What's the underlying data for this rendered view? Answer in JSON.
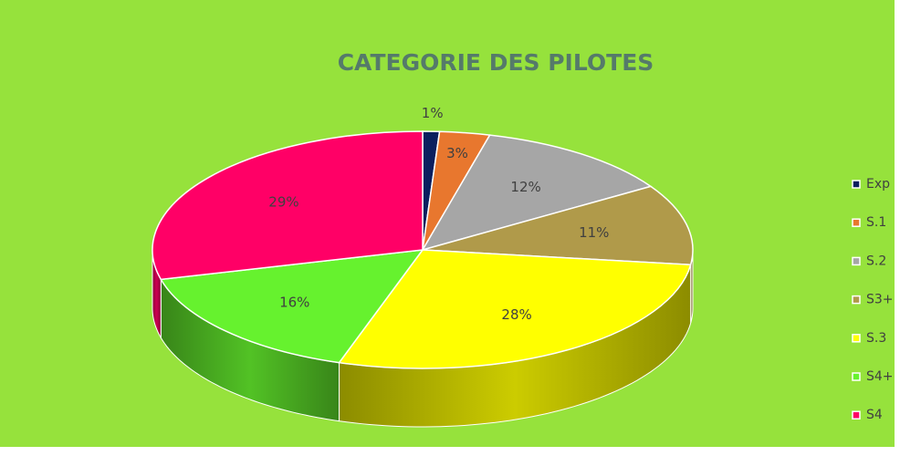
{
  "chart_data": {
    "type": "pie",
    "title": "CATEGORIE DES PILOTES",
    "categories": [
      "Exp",
      "S.1",
      "S.2",
      "S3+",
      "S.3",
      "S4+",
      "S4"
    ],
    "values": [
      1,
      3,
      12,
      11,
      28,
      16,
      29
    ],
    "value_labels": [
      "1%",
      "3%",
      "12%",
      "11%",
      "28%",
      "16%",
      "29%"
    ],
    "colors": [
      "#0b1f5e",
      "#e8772e",
      "#a6a6a6",
      "#b09a4a",
      "#ffff00",
      "#66f22e",
      "#ff0066"
    ],
    "legend": "right"
  }
}
